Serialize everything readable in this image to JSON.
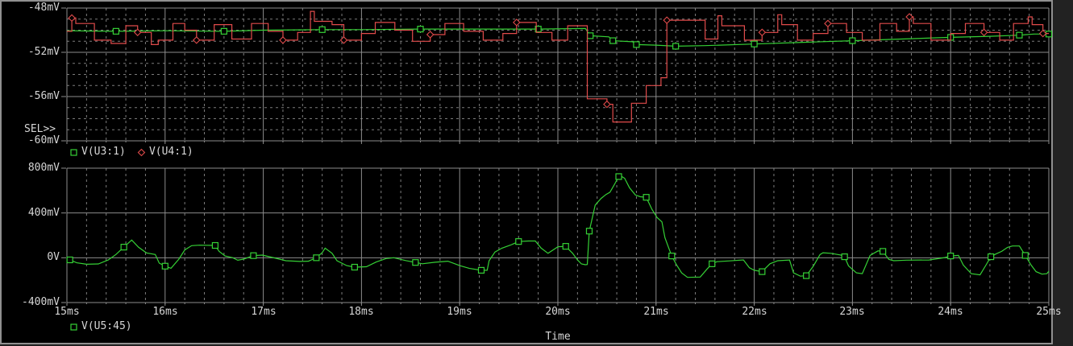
{
  "window": {
    "app": "PSpice Probe plot window",
    "sel_label": "SEL>>",
    "background": "#000000",
    "frame_color": "#909090"
  },
  "colors": {
    "grid": "#8c8c8c",
    "grid_minor": "#7c7c7c",
    "text": "#d6d6d6",
    "trace_green": "#35d035",
    "trace_red": "#e14b4b"
  },
  "chart_data": [
    {
      "type": "line",
      "title": "",
      "xlabel": "",
      "ylabel": "",
      "x_range_ms": [
        15,
        25
      ],
      "x_major_ms": 1,
      "x_minor_ms": 0.2,
      "y_top": -48,
      "y_bottom": -60,
      "y_minor": 1,
      "y_tick_labels": [
        "-48mV",
        "-52mV",
        "-56mV",
        "-60mV"
      ],
      "x_tick_labels": [],
      "legend_position": "bottom-left",
      "grid": true,
      "series": [
        {
          "name": "V(U3:1)",
          "color": "#35d035",
          "marker": "square",
          "interp": "linear",
          "marker_every": 2,
          "points": [
            [
              15.0,
              -50.05
            ],
            [
              15.5,
              -50.1
            ],
            [
              16.0,
              -50.05
            ],
            [
              16.6,
              -50.1
            ],
            [
              17.0,
              -50.0
            ],
            [
              17.6,
              -49.95
            ],
            [
              18.0,
              -49.95
            ],
            [
              18.6,
              -49.9
            ],
            [
              19.2,
              -49.9
            ],
            [
              19.8,
              -49.9
            ],
            [
              20.28,
              -49.85
            ],
            [
              20.33,
              -50.5
            ],
            [
              20.52,
              -50.6
            ],
            [
              20.56,
              -50.95
            ],
            [
              20.76,
              -51.05
            ],
            [
              20.8,
              -51.3
            ],
            [
              21.0,
              -51.35
            ],
            [
              21.2,
              -51.45
            ],
            [
              21.5,
              -51.4
            ],
            [
              22.0,
              -51.25
            ],
            [
              22.5,
              -51.1
            ],
            [
              23.0,
              -50.95
            ],
            [
              23.5,
              -50.8
            ],
            [
              24.0,
              -50.65
            ],
            [
              24.4,
              -50.55
            ],
            [
              24.7,
              -50.45
            ],
            [
              24.85,
              -50.35
            ],
            [
              25.0,
              -50.35
            ]
          ]
        },
        {
          "name": "V(U4:1)",
          "color": "#e14b4b",
          "marker": "diamond",
          "interp": "step",
          "marker_every": 5,
          "points": [
            [
              15.0,
              -50.1
            ],
            [
              15.05,
              -48.9
            ],
            [
              15.09,
              -49.4
            ],
            [
              15.28,
              -50.9
            ],
            [
              15.45,
              -51.2
            ],
            [
              15.6,
              -49.6
            ],
            [
              15.72,
              -50.2
            ],
            [
              15.86,
              -51.3
            ],
            [
              15.93,
              -50.9
            ],
            [
              16.08,
              -49.4
            ],
            [
              16.2,
              -50.0
            ],
            [
              16.32,
              -50.9
            ],
            [
              16.5,
              -49.5
            ],
            [
              16.68,
              -50.8
            ],
            [
              16.88,
              -49.4
            ],
            [
              17.05,
              -50.1
            ],
            [
              17.2,
              -50.9
            ],
            [
              17.35,
              -50.2
            ],
            [
              17.48,
              -48.3
            ],
            [
              17.52,
              -49.2
            ],
            [
              17.7,
              -49.5
            ],
            [
              17.82,
              -50.9
            ],
            [
              18.0,
              -50.3
            ],
            [
              18.14,
              -49.3
            ],
            [
              18.34,
              -50.0
            ],
            [
              18.52,
              -51.0
            ],
            [
              18.7,
              -50.4
            ],
            [
              18.85,
              -49.4
            ],
            [
              19.04,
              -50.1
            ],
            [
              19.24,
              -50.9
            ],
            [
              19.44,
              -50.3
            ],
            [
              19.58,
              -49.3
            ],
            [
              19.78,
              -50.2
            ],
            [
              19.94,
              -50.9
            ],
            [
              20.1,
              -49.6
            ],
            [
              20.3,
              -56.2
            ],
            [
              20.5,
              -56.7
            ],
            [
              20.56,
              -58.3
            ],
            [
              20.75,
              -56.6
            ],
            [
              20.9,
              -55.0
            ],
            [
              21.05,
              -54.3
            ],
            [
              21.11,
              -49.1
            ],
            [
              21.5,
              -50.8
            ],
            [
              21.63,
              -48.7
            ],
            [
              21.67,
              -49.6
            ],
            [
              21.9,
              -50.9
            ],
            [
              22.08,
              -50.2
            ],
            [
              22.24,
              -48.6
            ],
            [
              22.28,
              -49.5
            ],
            [
              22.44,
              -50.9
            ],
            [
              22.6,
              -50.3
            ],
            [
              22.75,
              -49.4
            ],
            [
              22.94,
              -50.2
            ],
            [
              23.1,
              -50.9
            ],
            [
              23.28,
              -49.4
            ],
            [
              23.45,
              -50.1
            ],
            [
              23.58,
              -48.8
            ],
            [
              23.62,
              -49.4
            ],
            [
              23.8,
              -50.9
            ],
            [
              24.0,
              -50.3
            ],
            [
              24.15,
              -49.4
            ],
            [
              24.34,
              -50.2
            ],
            [
              24.5,
              -50.9
            ],
            [
              24.64,
              -49.4
            ],
            [
              24.79,
              -48.8
            ],
            [
              24.83,
              -49.5
            ],
            [
              24.94,
              -50.3
            ],
            [
              25.0,
              -50.3
            ]
          ]
        }
      ]
    },
    {
      "type": "line",
      "title": "",
      "xlabel": "Time",
      "ylabel": "",
      "x_range_ms": [
        15,
        25
      ],
      "x_major_ms": 1,
      "x_minor_ms": 0.2,
      "y_top": 800,
      "y_bottom": -400,
      "y_minor": null,
      "y_tick_labels": [
        "800mV",
        "400mV",
        "0V",
        "-400mV"
      ],
      "x_tick_labels": [
        "15ms",
        "16ms",
        "17ms",
        "18ms",
        "19ms",
        "20ms",
        "21ms",
        "22ms",
        "23ms",
        "24ms",
        "25ms"
      ],
      "legend_position": "bottom-left",
      "grid": true,
      "series": [
        {
          "name": "V(U5:45)",
          "color": "#35d035",
          "marker": "square",
          "interp": "linear",
          "marker_every": 6,
          "points": [
            [
              15.0,
              -25
            ],
            [
              15.03,
              -19
            ],
            [
              15.1,
              -45
            ],
            [
              15.2,
              -58
            ],
            [
              15.32,
              -55
            ],
            [
              15.42,
              -20
            ],
            [
              15.5,
              30
            ],
            [
              15.58,
              95
            ],
            [
              15.66,
              158
            ],
            [
              15.73,
              94
            ],
            [
              15.81,
              43
            ],
            [
              15.9,
              29
            ],
            [
              15.94,
              -48
            ],
            [
              16.0,
              -75
            ],
            [
              16.06,
              -94
            ],
            [
              16.14,
              -12
            ],
            [
              16.2,
              70
            ],
            [
              16.27,
              108
            ],
            [
              16.35,
              112
            ],
            [
              16.51,
              110
            ],
            [
              16.55,
              58
            ],
            [
              16.61,
              16
            ],
            [
              16.69,
              0
            ],
            [
              16.74,
              -22
            ],
            [
              16.8,
              -12
            ],
            [
              16.9,
              19
            ],
            [
              16.99,
              24
            ],
            [
              17.13,
              -5
            ],
            [
              17.23,
              -26
            ],
            [
              17.37,
              -33
            ],
            [
              17.46,
              -31
            ],
            [
              17.54,
              0
            ],
            [
              17.6,
              46
            ],
            [
              17.63,
              86
            ],
            [
              17.7,
              40
            ],
            [
              17.75,
              -26
            ],
            [
              17.85,
              -70
            ],
            [
              17.93,
              -84
            ],
            [
              18.05,
              -80
            ],
            [
              18.15,
              -38
            ],
            [
              18.25,
              -7
            ],
            [
              18.33,
              0
            ],
            [
              18.45,
              -25
            ],
            [
              18.55,
              -42
            ],
            [
              18.62,
              -54
            ],
            [
              18.75,
              -40
            ],
            [
              18.88,
              -31
            ],
            [
              19.0,
              -70
            ],
            [
              19.1,
              -95
            ],
            [
              19.22,
              -112
            ],
            [
              19.28,
              -112
            ],
            [
              19.3,
              -26
            ],
            [
              19.36,
              51
            ],
            [
              19.43,
              86
            ],
            [
              19.52,
              114
            ],
            [
              19.6,
              145
            ],
            [
              19.7,
              150
            ],
            [
              19.77,
              150
            ],
            [
              19.83,
              86
            ],
            [
              19.9,
              40
            ],
            [
              20.0,
              98
            ],
            [
              20.08,
              102
            ],
            [
              20.15,
              40
            ],
            [
              20.2,
              -20
            ],
            [
              20.24,
              -55
            ],
            [
              20.28,
              -62
            ],
            [
              20.3,
              -60
            ],
            [
              20.32,
              238
            ],
            [
              20.38,
              470
            ],
            [
              20.44,
              530
            ],
            [
              20.49,
              565
            ],
            [
              20.53,
              585
            ],
            [
              20.58,
              660
            ],
            [
              20.62,
              725
            ],
            [
              20.64,
              730
            ],
            [
              20.68,
              710
            ],
            [
              20.73,
              625
            ],
            [
              20.79,
              560
            ],
            [
              20.84,
              545
            ],
            [
              20.9,
              540
            ],
            [
              20.96,
              430
            ],
            [
              21.01,
              360
            ],
            [
              21.06,
              320
            ],
            [
              21.09,
              180
            ],
            [
              21.13,
              86
            ],
            [
              21.16,
              16
            ],
            [
              21.21,
              -66
            ],
            [
              21.26,
              -135
            ],
            [
              21.32,
              -175
            ],
            [
              21.45,
              -172
            ],
            [
              21.52,
              -100
            ],
            [
              21.57,
              -54
            ],
            [
              21.62,
              -35
            ],
            [
              21.75,
              -28
            ],
            [
              21.89,
              -19
            ],
            [
              21.95,
              -89
            ],
            [
              22.0,
              -112
            ],
            [
              22.08,
              -124
            ],
            [
              22.16,
              -54
            ],
            [
              22.24,
              -26
            ],
            [
              22.36,
              -20
            ],
            [
              22.4,
              -135
            ],
            [
              22.47,
              -164
            ],
            [
              22.53,
              -160
            ],
            [
              22.6,
              -77
            ],
            [
              22.67,
              29
            ],
            [
              22.7,
              45
            ],
            [
              22.78,
              40
            ],
            [
              22.88,
              25
            ],
            [
              22.92,
              9
            ],
            [
              22.96,
              -72
            ],
            [
              23.04,
              -135
            ],
            [
              23.1,
              -142
            ],
            [
              23.18,
              21
            ],
            [
              23.26,
              61
            ],
            [
              23.31,
              57
            ],
            [
              23.37,
              -14
            ],
            [
              23.42,
              -26
            ],
            [
              23.55,
              -21
            ],
            [
              23.78,
              -20
            ],
            [
              23.94,
              2
            ],
            [
              24.0,
              16
            ],
            [
              24.08,
              21
            ],
            [
              24.13,
              -66
            ],
            [
              24.21,
              -142
            ],
            [
              24.3,
              -153
            ],
            [
              24.36,
              -66
            ],
            [
              24.41,
              9
            ],
            [
              24.46,
              33
            ],
            [
              24.52,
              57
            ],
            [
              24.58,
              93
            ],
            [
              24.63,
              105
            ],
            [
              24.7,
              105
            ],
            [
              24.76,
              21
            ],
            [
              24.82,
              -66
            ],
            [
              24.87,
              -124
            ],
            [
              24.93,
              -146
            ],
            [
              24.98,
              -142
            ],
            [
              25.0,
              -120
            ]
          ]
        }
      ]
    }
  ]
}
